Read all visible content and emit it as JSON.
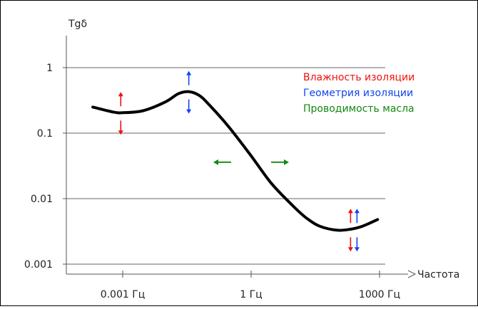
{
  "chart_data": {
    "type": "line",
    "ylabel": "Tgδ",
    "xlabel": "Частота",
    "y_scale": "log",
    "x_scale": "log",
    "y_ticks": [
      {
        "value": 0.001,
        "label": "0.001"
      },
      {
        "value": 0.01,
        "label": "0.01"
      },
      {
        "value": 0.1,
        "label": "0.1"
      },
      {
        "value": 1,
        "label": "1"
      }
    ],
    "x_ticks": [
      {
        "value": 0.001,
        "label": "0.001 Гц"
      },
      {
        "value": 1,
        "label": "1 Гц"
      },
      {
        "value": 1000,
        "label": "1000 Гц"
      }
    ],
    "ylim": [
      0.0005,
      5
    ],
    "xlim": [
      6e-05,
      200000
    ],
    "grid": "horizontal",
    "series": [
      {
        "color": "#000000",
        "points": [
          [
            0.0002,
            0.25
          ],
          [
            0.0006,
            0.21
          ],
          [
            0.001,
            0.205
          ],
          [
            0.003,
            0.22
          ],
          [
            0.01,
            0.3
          ],
          [
            0.02,
            0.4
          ],
          [
            0.035,
            0.43
          ],
          [
            0.06,
            0.38
          ],
          [
            0.1,
            0.28
          ],
          [
            0.3,
            0.125
          ],
          [
            1,
            0.045
          ],
          [
            3,
            0.017
          ],
          [
            10,
            0.0075
          ],
          [
            20,
            0.005
          ],
          [
            40,
            0.0038
          ],
          [
            100,
            0.0033
          ],
          [
            200,
            0.0034
          ],
          [
            400,
            0.0038
          ],
          [
            900,
            0.0048
          ]
        ]
      }
    ],
    "legend": {
      "placement": "top-right",
      "items": [
        {
          "label": "Влажность изоляции",
          "color": "#ee1111"
        },
        {
          "label": "Геометрия изоляции",
          "color": "#1144ee"
        },
        {
          "label": "Проводимость масла",
          "color": "#118811"
        }
      ]
    },
    "annotations": [
      {
        "kind": "vertical-arrows",
        "x": 0.0009,
        "y": 0.2,
        "colors": [
          "#ee1111"
        ]
      },
      {
        "kind": "vertical-arrows",
        "x": 0.035,
        "y": 0.42,
        "colors": [
          "#1144ee"
        ]
      },
      {
        "kind": "horizontal-arrows",
        "x": 1,
        "y": 0.036,
        "colors": [
          "#118811"
        ]
      },
      {
        "kind": "vertical-arrows",
        "x": 250,
        "y": 0.0033,
        "colors": [
          "#ee1111",
          "#1144ee"
        ]
      }
    ]
  }
}
